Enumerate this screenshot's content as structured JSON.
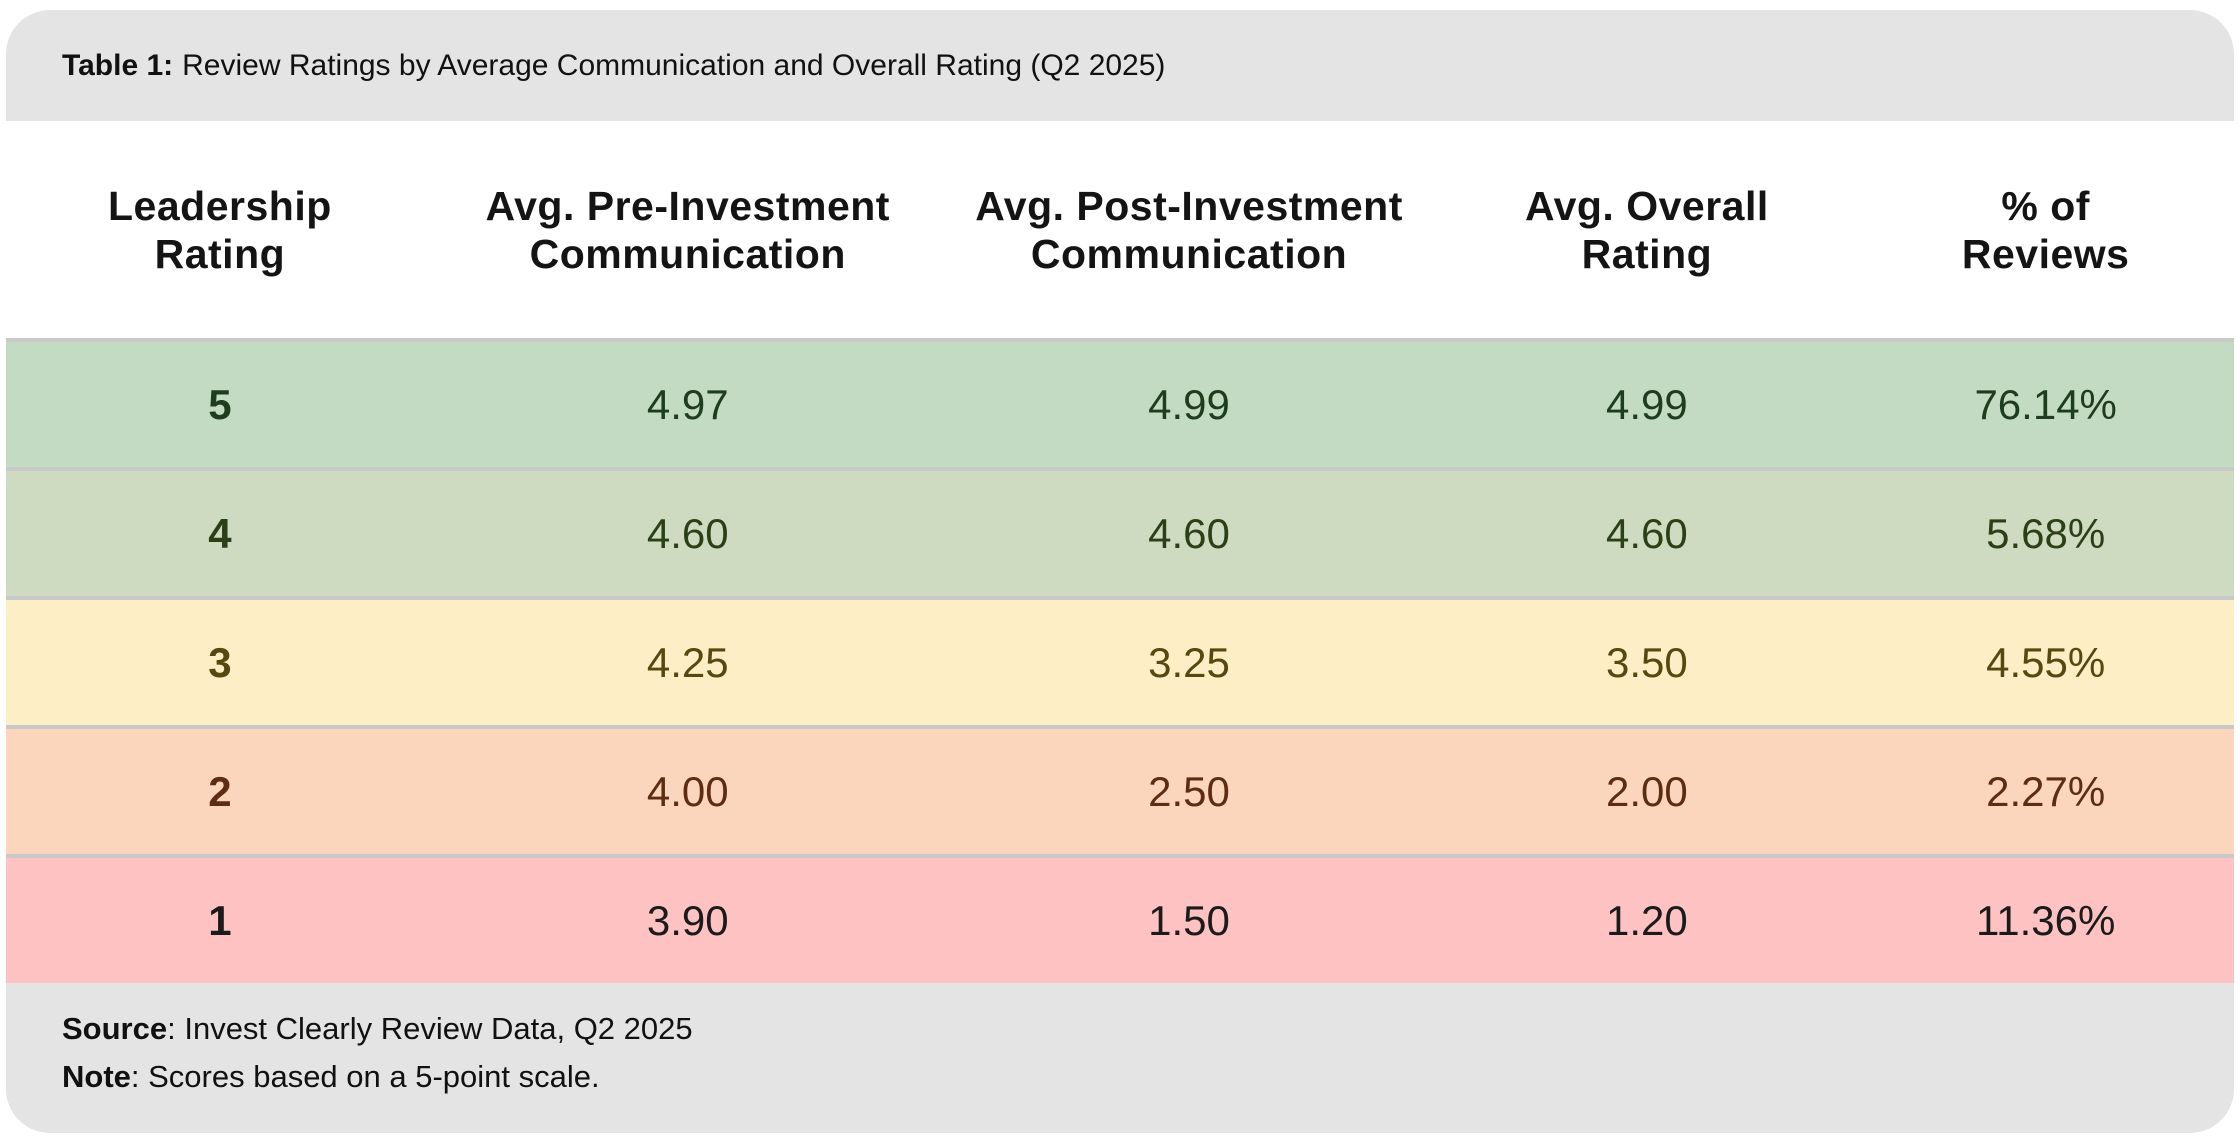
{
  "title": {
    "prefix": "Table 1:",
    "text": "Review Ratings by Average Communication and Overall Rating (Q2 2025)"
  },
  "table": {
    "columns": [
      {
        "line1": "Leadership",
        "line2": "Rating"
      },
      {
        "line1": "Avg. Pre-Investment",
        "line2": "Communication"
      },
      {
        "line1": "Avg. Post-Investment",
        "line2": "Communication"
      },
      {
        "line1": "Avg. Overall",
        "line2": "Rating"
      },
      {
        "line1": "% of",
        "line2": "Reviews"
      }
    ],
    "rows": [
      {
        "cells": [
          "5",
          "4.97",
          "4.99",
          "4.99",
          "76.14%"
        ],
        "bg": "#c2dbc2",
        "fg": "#1e3c1e"
      },
      {
        "cells": [
          "4",
          "4.60",
          "4.60",
          "4.60",
          "5.68%"
        ],
        "bg": "#cedbc0",
        "fg": "#2c4018"
      },
      {
        "cells": [
          "3",
          "4.25",
          "3.25",
          "3.50",
          "4.55%"
        ],
        "bg": "#fdeec5",
        "fg": "#564910"
      },
      {
        "cells": [
          "2",
          "4.00",
          "2.50",
          "2.00",
          "2.27%"
        ],
        "bg": "#fbd6bc",
        "fg": "#5d2d12"
      },
      {
        "cells": [
          "1",
          "3.90",
          "1.50",
          "1.20",
          "11.36%"
        ],
        "bg": "#fec2c2",
        "fg": "#1b1b1b"
      }
    ]
  },
  "footer": {
    "source_label": "Source",
    "source_text": ": Invest Clearly Review Data, Q2 2025",
    "note_label": "Note",
    "note_text": ": Scores based on a 5-point scale."
  },
  "colors": {
    "bar_gray": "#e4e4e4",
    "divider": "#c9c9c9",
    "page_bg": "#ffffff",
    "header_text": "#141414"
  },
  "chart_data": {
    "type": "table",
    "title": "Table 1: Review Ratings by Average Communication and Overall Rating (Q2 2025)",
    "columns": [
      "Leadership Rating",
      "Avg. Pre-Investment Communication",
      "Avg. Post-Investment Communication",
      "Avg. Overall Rating",
      "% of Reviews"
    ],
    "rows": [
      [
        5,
        4.97,
        4.99,
        4.99,
        "76.14%"
      ],
      [
        4,
        4.6,
        4.6,
        4.6,
        "5.68%"
      ],
      [
        3,
        4.25,
        3.25,
        3.5,
        "4.55%"
      ],
      [
        2,
        4.0,
        2.5,
        2.0,
        "2.27%"
      ],
      [
        1,
        3.9,
        1.5,
        1.2,
        "11.36%"
      ]
    ],
    "source": "Invest Clearly Review Data, Q2 2025",
    "note": "Scores based on a 5-point scale."
  }
}
